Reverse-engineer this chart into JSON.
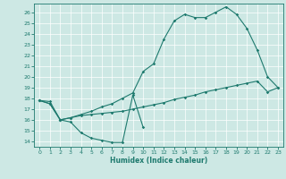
{
  "xlabel": "Humidex (Indice chaleur)",
  "xlim": [
    -0.5,
    23.5
  ],
  "ylim": [
    13.5,
    26.8
  ],
  "yticks": [
    14,
    15,
    16,
    17,
    18,
    19,
    20,
    21,
    22,
    23,
    24,
    25,
    26
  ],
  "xticks": [
    0,
    1,
    2,
    3,
    4,
    5,
    6,
    7,
    8,
    9,
    10,
    11,
    12,
    13,
    14,
    15,
    16,
    17,
    18,
    19,
    20,
    21,
    22,
    23
  ],
  "bg_color": "#cde8e4",
  "line_color": "#1e7a6e",
  "grid_color": "#ffffff",
  "line1_x": [
    0,
    1,
    2,
    3,
    4,
    5,
    6,
    7,
    8,
    9,
    10
  ],
  "line1_y": [
    17.8,
    17.5,
    16.0,
    15.8,
    14.8,
    14.3,
    14.1,
    13.9,
    13.9,
    18.3,
    15.3
  ],
  "line2_x": [
    0,
    1,
    2,
    3,
    4,
    5,
    6,
    7,
    8,
    9,
    10,
    11,
    12,
    13,
    14,
    15,
    16,
    17,
    18,
    19,
    20,
    21,
    22,
    23
  ],
  "line2_y": [
    17.8,
    17.7,
    16.0,
    16.2,
    16.4,
    16.5,
    16.6,
    16.7,
    16.8,
    17.0,
    17.2,
    17.4,
    17.6,
    17.9,
    18.1,
    18.3,
    18.6,
    18.8,
    19.0,
    19.2,
    19.4,
    19.6,
    18.6,
    19.0
  ],
  "line3_x": [
    0,
    1,
    2,
    3,
    4,
    5,
    6,
    7,
    8,
    9,
    10,
    11,
    12,
    13,
    14,
    15,
    16,
    17,
    18,
    19,
    20,
    21,
    22,
    23
  ],
  "line3_y": [
    17.8,
    17.5,
    16.0,
    16.2,
    16.5,
    16.8,
    17.2,
    17.5,
    18.0,
    18.5,
    20.5,
    21.2,
    23.5,
    25.2,
    25.8,
    25.5,
    25.5,
    26.0,
    26.5,
    25.8,
    24.5,
    22.5,
    20.0,
    19.0
  ]
}
